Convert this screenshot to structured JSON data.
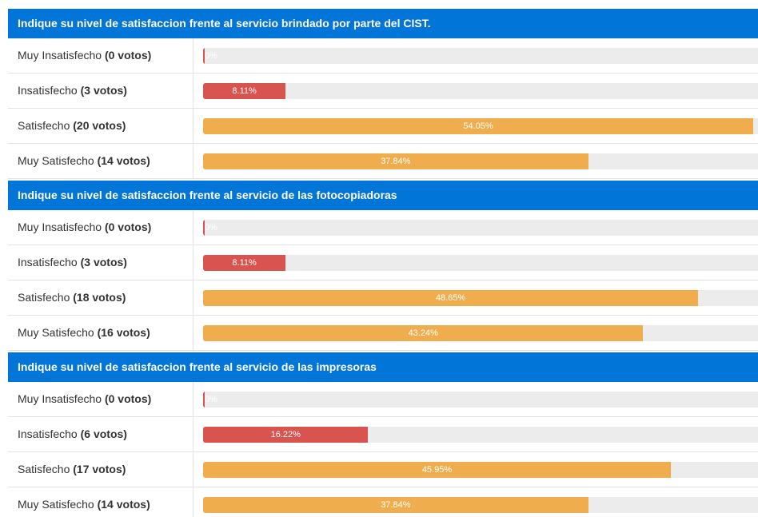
{
  "sections": [
    {
      "title": "Indique su nivel de satisfaccion frente al servicio brindado por parte del CIST.",
      "rows": [
        {
          "label": "Muy Insatisfecho",
          "votes": "(0 votos)",
          "percent": 0,
          "percent_label": "0%",
          "color": "#d9534f"
        },
        {
          "label": "Insatisfecho",
          "votes": "(3 votos)",
          "percent": 8.11,
          "percent_label": "8.11%",
          "color": "#d9534f"
        },
        {
          "label": "Satisfecho",
          "votes": "(20 votos)",
          "percent": 54.05,
          "percent_label": "54.05%",
          "color": "#f0ad4e"
        },
        {
          "label": "Muy Satisfecho",
          "votes": "(14 votos)",
          "percent": 37.84,
          "percent_label": "37.84%",
          "color": "#f0ad4e"
        }
      ]
    },
    {
      "title": "Indique su nivel de satisfaccion frente al servicio de las fotocopiadoras",
      "rows": [
        {
          "label": "Muy Insatisfecho",
          "votes": "(0 votos)",
          "percent": 0,
          "percent_label": "0%",
          "color": "#d9534f"
        },
        {
          "label": "Insatisfecho",
          "votes": "(3 votos)",
          "percent": 8.11,
          "percent_label": "8.11%",
          "color": "#d9534f"
        },
        {
          "label": "Satisfecho",
          "votes": "(18 votos)",
          "percent": 48.65,
          "percent_label": "48.65%",
          "color": "#f0ad4e"
        },
        {
          "label": "Muy Satisfecho",
          "votes": "(16 votos)",
          "percent": 43.24,
          "percent_label": "43.24%",
          "color": "#f0ad4e"
        }
      ]
    },
    {
      "title": "Indique su nivel de satisfaccion frente al servicio de las impresoras",
      "rows": [
        {
          "label": "Muy Insatisfecho",
          "votes": "(0 votos)",
          "percent": 0,
          "percent_label": "0%",
          "color": "#d9534f"
        },
        {
          "label": "Insatisfecho",
          "votes": "(6 votos)",
          "percent": 16.22,
          "percent_label": "16.22%",
          "color": "#d9534f"
        },
        {
          "label": "Satisfecho",
          "votes": "(17 votos)",
          "percent": 45.95,
          "percent_label": "45.95%",
          "color": "#f0ad4e"
        },
        {
          "label": "Muy Satisfecho",
          "votes": "(14 votos)",
          "percent": 37.84,
          "percent_label": "37.84%",
          "color": "#f0ad4e"
        }
      ]
    }
  ]
}
